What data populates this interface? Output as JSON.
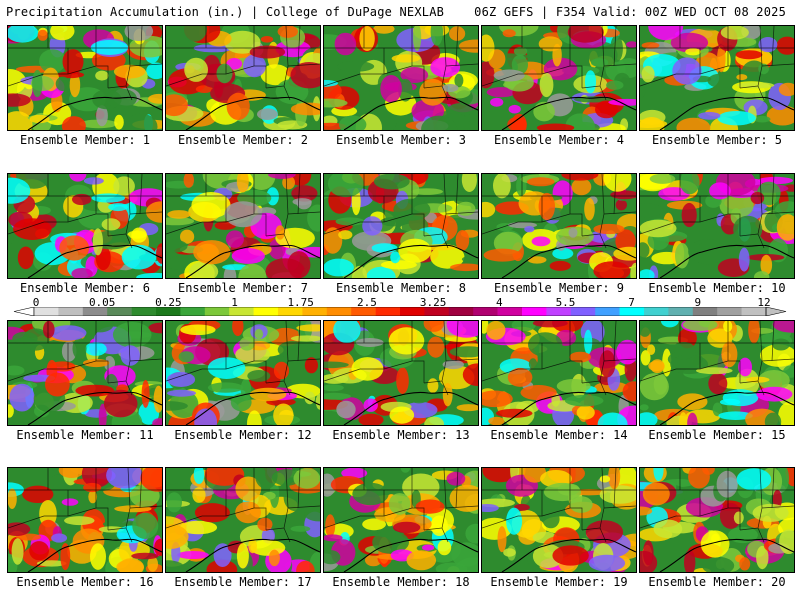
{
  "header": {
    "left": "Precipitation Accumulation (in.) | College of DuPage NEXLAB",
    "right": "06Z GEFS | F354 Valid: 00Z WED OCT 08 2025"
  },
  "panels": [
    {
      "label": "Ensemble Member: 1"
    },
    {
      "label": "Ensemble Member: 2"
    },
    {
      "label": "Ensemble Member: 3"
    },
    {
      "label": "Ensemble Member: 4"
    },
    {
      "label": "Ensemble Member: 5"
    },
    {
      "label": "Ensemble Member: 6"
    },
    {
      "label": "Ensemble Member: 7"
    },
    {
      "label": "Ensemble Member: 8"
    },
    {
      "label": "Ensemble Member: 9"
    },
    {
      "label": "Ensemble Member: 10"
    },
    {
      "label": "Ensemble Member: 11"
    },
    {
      "label": "Ensemble Member: 12"
    },
    {
      "label": "Ensemble Member: 13"
    },
    {
      "label": "Ensemble Member: 14"
    },
    {
      "label": "Ensemble Member: 15"
    },
    {
      "label": "Ensemble Member: 16"
    },
    {
      "label": "Ensemble Member: 17"
    },
    {
      "label": "Ensemble Member: 18"
    },
    {
      "label": "Ensemble Member: 19"
    },
    {
      "label": "Ensemble Member: 20"
    }
  ],
  "colorbar": {
    "labels": [
      "0",
      "0.05",
      "0.25",
      "1",
      "1.75",
      "2.5",
      "3.25",
      "4",
      "5.5",
      "7",
      "9",
      "12"
    ],
    "colors": [
      "#e0e0e0",
      "#bfbfbf",
      "#8c8c8c",
      "#5a8a5a",
      "#2e8b2e",
      "#1c7a1c",
      "#3aa63a",
      "#7cc83a",
      "#c8e632",
      "#ffff00",
      "#ffd700",
      "#ffb000",
      "#ff8c00",
      "#ff5a00",
      "#ff2a00",
      "#e00000",
      "#c00020",
      "#a00040",
      "#b00070",
      "#d000a0",
      "#ff00ff",
      "#c040ff",
      "#8060ff",
      "#40a0ff",
      "#00ffff",
      "#40d0d0",
      "#60b0b0",
      "#808080",
      "#a0a0a0",
      "#c0c0c0"
    ]
  }
}
